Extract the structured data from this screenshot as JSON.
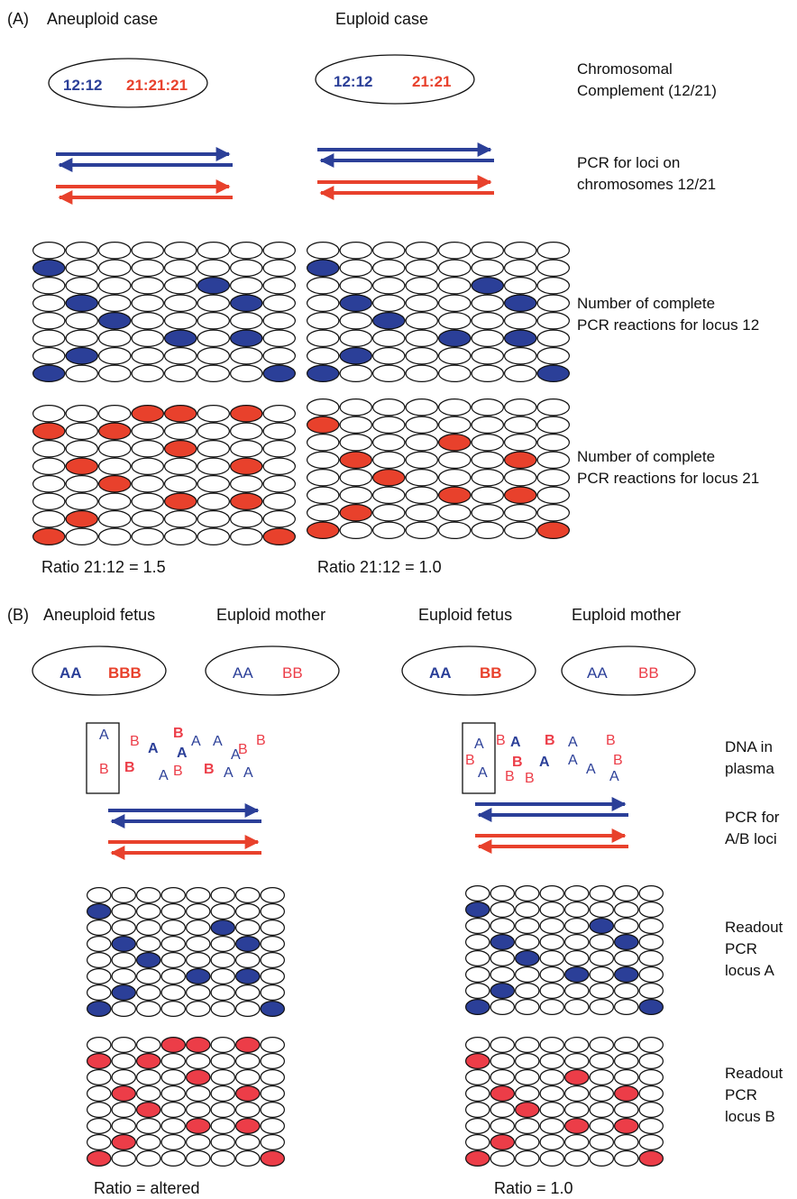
{
  "colors": {
    "blue": "#2b3f98",
    "red": "#e8412c",
    "red_light": "#ec3d48",
    "outline": "#111111"
  },
  "panel_a": {
    "header": "(A)",
    "aneuploid_title": "Aneuploid case",
    "euploid_title": "Euploid case",
    "aneuploid_complement": {
      "left": "12:12",
      "right": "21:21:21"
    },
    "euploid_complement": {
      "left": "12:12",
      "right": "21:21"
    },
    "side_labels": {
      "complement": [
        "Chromosomal",
        "Complement (12/21)"
      ],
      "pcr": [
        "PCR for loci on",
        "chromosomes 12/21"
      ],
      "locus12": [
        "Number of complete",
        "PCR reactions for locus 12"
      ],
      "locus21": [
        "Number of complete",
        "PCR reactions for locus 21"
      ]
    },
    "ratio_aneuploid": "Ratio 21:12 = 1.5",
    "ratio_euploid": "Ratio 21:12 = 1.0"
  },
  "panel_b": {
    "header": "(B)",
    "aneuploid_fetus_title": "Aneuploid fetus",
    "euploid_mother_title": "Euploid mother",
    "euploid_fetus_title": "Euploid fetus",
    "euploid_mother_title_2": "Euploid mother",
    "aneuploid_fetus_genotype": {
      "a": "AA",
      "b": "BBB"
    },
    "mother_genotype": {
      "a": "AA",
      "b": "BB"
    },
    "euploid_fetus_genotype": {
      "a": "AA",
      "b": "BB"
    },
    "mother_genotype_2": {
      "a": "AA",
      "b": "BB"
    },
    "side_labels": {
      "dna": [
        "DNA in",
        "plasma"
      ],
      "pcr": [
        "PCR for",
        "A/B loci"
      ],
      "locus_a": [
        "Readout",
        "PCR",
        "locus A"
      ],
      "locus_b": [
        "Readout",
        "PCR",
        "locus B"
      ]
    },
    "ratio_aneuploid": "Ratio = altered",
    "ratio_euploid": "Ratio = 1.0",
    "dna_left": [
      {
        "t": "A",
        "c": "blue",
        "b": false
      },
      {
        "t": "B",
        "c": "red",
        "b": false
      },
      {
        "t": "B",
        "c": "red",
        "b": false
      },
      {
        "t": "B",
        "c": "red",
        "b": true
      },
      {
        "t": "A",
        "c": "blue",
        "b": true
      },
      {
        "t": "A",
        "c": "blue",
        "b": false
      },
      {
        "t": "A",
        "c": "blue",
        "b": true
      },
      {
        "t": "A",
        "c": "blue",
        "b": false
      },
      {
        "t": "A",
        "c": "blue",
        "b": false
      },
      {
        "t": "B",
        "c": "red",
        "b": false
      },
      {
        "t": "B",
        "c": "red",
        "b": false
      },
      {
        "t": "B",
        "c": "red",
        "b": true
      },
      {
        "t": "B",
        "c": "red",
        "b": false
      },
      {
        "t": "B",
        "c": "red",
        "b": true
      },
      {
        "t": "A",
        "c": "blue",
        "b": false
      },
      {
        "t": "A",
        "c": "blue",
        "b": false
      },
      {
        "t": "A",
        "c": "blue",
        "b": false
      }
    ],
    "dna_right": [
      {
        "t": "A",
        "c": "blue",
        "b": false
      },
      {
        "t": "B",
        "c": "red",
        "b": false
      },
      {
        "t": "A",
        "c": "blue",
        "b": true
      },
      {
        "t": "B",
        "c": "red",
        "b": true
      },
      {
        "t": "A",
        "c": "blue",
        "b": false
      },
      {
        "t": "B",
        "c": "red",
        "b": false
      },
      {
        "t": "B",
        "c": "red",
        "b": false
      },
      {
        "t": "A",
        "c": "blue",
        "b": false
      },
      {
        "t": "B",
        "c": "red",
        "b": true
      },
      {
        "t": "A",
        "c": "blue",
        "b": true
      },
      {
        "t": "B",
        "c": "red",
        "b": false
      },
      {
        "t": "A",
        "c": "blue",
        "b": false
      },
      {
        "t": "A",
        "c": "blue",
        "b": false
      },
      {
        "t": "B",
        "c": "red",
        "b": false
      },
      {
        "t": "A",
        "c": "blue",
        "b": false
      },
      {
        "t": "B",
        "c": "red",
        "b": false
      }
    ]
  },
  "grids": {
    "rows": 8,
    "cols": 8,
    "locus12_filled": [
      [
        1,
        0
      ],
      [
        2,
        5
      ],
      [
        3,
        1
      ],
      [
        3,
        6
      ],
      [
        4,
        2
      ],
      [
        5,
        4
      ],
      [
        5,
        6
      ],
      [
        6,
        1
      ],
      [
        7,
        0
      ],
      [
        7,
        7
      ]
    ],
    "locus21_aneuploid_filled": [
      [
        0,
        3
      ],
      [
        0,
        4
      ],
      [
        0,
        6
      ],
      [
        1,
        0
      ],
      [
        1,
        2
      ],
      [
        2,
        4
      ],
      [
        3,
        1
      ],
      [
        3,
        6
      ],
      [
        4,
        2
      ],
      [
        5,
        4
      ],
      [
        5,
        6
      ],
      [
        6,
        1
      ],
      [
        7,
        0
      ],
      [
        7,
        7
      ]
    ],
    "locus21_euploid_filled": [
      [
        1,
        0
      ],
      [
        2,
        4
      ],
      [
        3,
        1
      ],
      [
        3,
        6
      ],
      [
        4,
        2
      ],
      [
        5,
        4
      ],
      [
        5,
        6
      ],
      [
        6,
        1
      ],
      [
        7,
        0
      ],
      [
        7,
        7
      ]
    ]
  }
}
